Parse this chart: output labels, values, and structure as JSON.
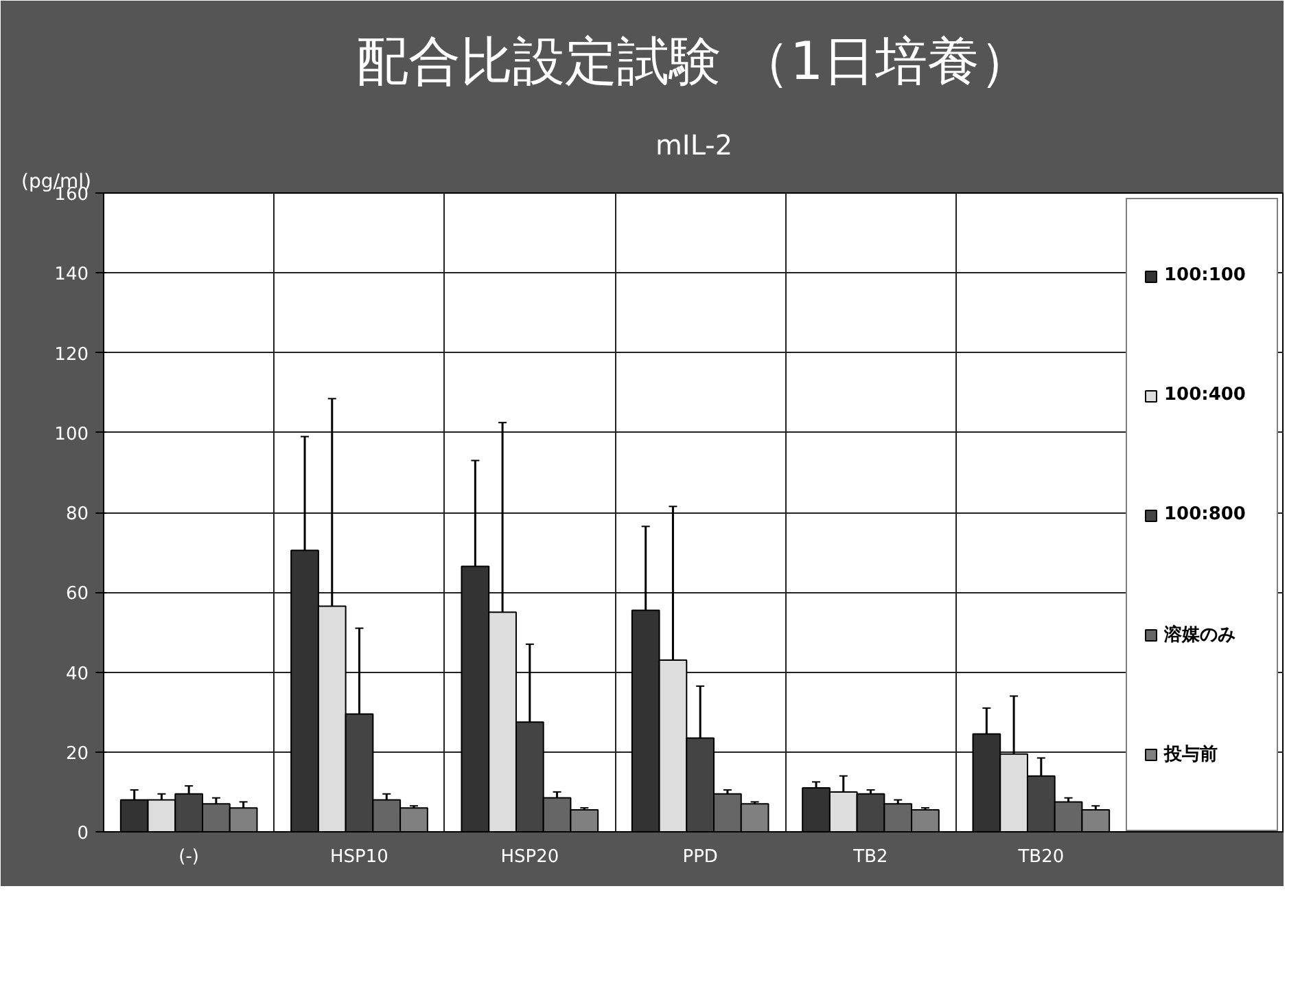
{
  "chart_data": {
    "type": "bar",
    "title": "配合比設定試験 （1日培養）",
    "subtitle": "mIL-2",
    "ylabel": "(pg/ml)",
    "categories": [
      "(-)",
      "HSP10",
      "HSP20",
      "PPD",
      "TB2",
      "TB20"
    ],
    "series": [
      {
        "name": "100:100",
        "color": "#333333",
        "values": [
          8,
          70.5,
          66.5,
          55.5,
          11,
          24.5
        ],
        "errors": [
          2.5,
          28.5,
          26.5,
          21,
          1.5,
          6.5
        ]
      },
      {
        "name": "100:400",
        "color": "#dddddd",
        "values": [
          8,
          56.5,
          55,
          43,
          10,
          19.5
        ],
        "errors": [
          1.5,
          52,
          47.5,
          38.5,
          4,
          14.5
        ]
      },
      {
        "name": "100:800",
        "color": "#444444",
        "values": [
          9.5,
          29.5,
          27.5,
          23.5,
          9.5,
          14
        ],
        "errors": [
          2,
          21.5,
          19.5,
          13,
          1,
          4.5
        ]
      },
      {
        "name": "溶媒のみ",
        "color": "#666666",
        "values": [
          7,
          8,
          8.5,
          9.5,
          7,
          7.5
        ],
        "errors": [
          1.5,
          1.5,
          1.5,
          1,
          1,
          1
        ]
      },
      {
        "name": "投与前",
        "color": "#808080",
        "values": [
          6,
          6,
          5.5,
          7,
          5.5,
          5.5
        ],
        "errors": [
          1.5,
          0.5,
          0.5,
          0.5,
          0.5,
          1
        ]
      }
    ],
    "ylim": [
      0,
      160
    ],
    "yticks": [
      0,
      20,
      40,
      60,
      80,
      100,
      120,
      140,
      160
    ],
    "grid": true,
    "legend": "right"
  }
}
